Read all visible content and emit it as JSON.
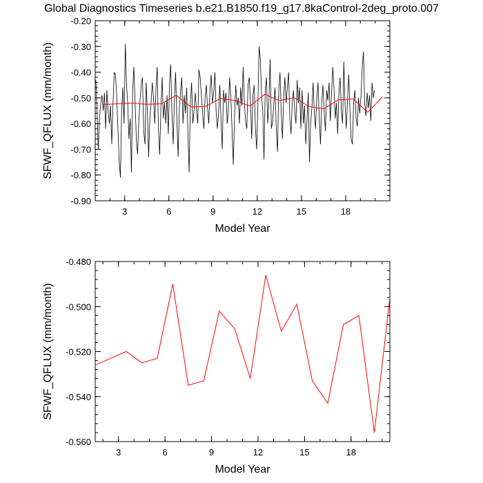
{
  "title": "Global Diagnostics Timeseries b.e21.B1850.f19_g17.8kaControl-2deg_proto.007",
  "colors": {
    "monthly": "#000000",
    "annual": "#ff0000"
  },
  "chart_data": [
    {
      "type": "line",
      "name": "monthly-and-annual-timeseries",
      "xlabel": "Model Year",
      "ylabel": "SFWF_QFLUX (mm/month)",
      "xlim": [
        1,
        21
      ],
      "ylim": [
        -0.9,
        -0.2
      ],
      "xticks": [
        3,
        6,
        9,
        15,
        18
      ],
      "xtick_labels": [
        "3",
        "6",
        "9",
        "15",
        "18"
      ],
      "xtick_positions_extra": [
        12
      ],
      "xtick_labels_extra": [
        "12"
      ],
      "yticks": [
        -0.9,
        -0.8,
        -0.7,
        -0.6,
        -0.5,
        -0.4,
        -0.3,
        -0.2
      ],
      "ytick_labels": [
        "-0.90",
        "-0.80",
        "-0.70",
        "-0.60",
        "-0.50",
        "-0.40",
        "-0.30",
        "-0.20"
      ],
      "series": [
        {
          "name": "monthly",
          "color": "#000000",
          "x_start": 1.0417,
          "x_step": 0.08333,
          "values": [
            -0.43,
            -0.55,
            -0.7,
            -0.58,
            -0.52,
            -0.49,
            -0.55,
            -0.48,
            -0.62,
            -0.47,
            -0.55,
            -0.6,
            -0.53,
            -0.68,
            -0.52,
            -0.4,
            -0.41,
            -0.49,
            -0.62,
            -0.74,
            -0.81,
            -0.55,
            -0.46,
            -0.6,
            -0.29,
            -0.45,
            -0.52,
            -0.66,
            -0.58,
            -0.79,
            -0.47,
            -0.38,
            -0.52,
            -0.66,
            -0.72,
            -0.59,
            -0.51,
            -0.45,
            -0.42,
            -0.63,
            -0.68,
            -0.44,
            -0.55,
            -0.73,
            -0.58,
            -0.52,
            -0.44,
            -0.5,
            -0.6,
            -0.46,
            -0.38,
            -0.62,
            -0.72,
            -0.54,
            -0.42,
            -0.58,
            -0.52,
            -0.6,
            -0.49,
            -0.64,
            -0.45,
            -0.37,
            -0.56,
            -0.68,
            -0.5,
            -0.4,
            -0.58,
            -0.73,
            -0.54,
            -0.48,
            -0.42,
            -0.6,
            -0.49,
            -0.56,
            -0.46,
            -0.63,
            -0.79,
            -0.52,
            -0.44,
            -0.6,
            -0.55,
            -0.48,
            -0.55,
            -0.6,
            -0.39,
            -0.42,
            -0.49,
            -0.56,
            -0.62,
            -0.5,
            -0.45,
            -0.54,
            -0.6,
            -0.47,
            -0.41,
            -0.52,
            -0.48,
            -0.4,
            -0.55,
            -0.62,
            -0.56,
            -0.45,
            -0.59,
            -0.7,
            -0.47,
            -0.52,
            -0.48,
            -0.6,
            -0.55,
            -0.42,
            -0.5,
            -0.63,
            -0.76,
            -0.57,
            -0.45,
            -0.53,
            -0.5,
            -0.6,
            -0.46,
            -0.53,
            -0.38,
            -0.52,
            -0.59,
            -0.62,
            -0.45,
            -0.42,
            -0.53,
            -0.66,
            -0.49,
            -0.45,
            -0.62,
            -0.7,
            -0.53,
            -0.3,
            -0.35,
            -0.49,
            -0.55,
            -0.74,
            -0.47,
            -0.42,
            -0.6,
            -0.52,
            -0.35,
            -0.62,
            -0.59,
            -0.52,
            -0.46,
            -0.62,
            -0.71,
            -0.47,
            -0.4,
            -0.55,
            -0.66,
            -0.5,
            -0.42,
            -0.52,
            -0.46,
            -0.4,
            -0.58,
            -0.64,
            -0.52,
            -0.47,
            -0.55,
            -0.6,
            -0.43,
            -0.52,
            -0.46,
            -0.62,
            -0.47,
            -0.6,
            -0.53,
            -0.68,
            -0.59,
            -0.48,
            -0.75,
            -0.6,
            -0.54,
            -0.44,
            -0.56,
            -0.62,
            -0.5,
            -0.44,
            -0.58,
            -0.68,
            -0.52,
            -0.45,
            -0.55,
            -0.63,
            -0.47,
            -0.51,
            -0.44,
            -0.59,
            -0.48,
            -0.38,
            -0.46,
            -0.58,
            -0.52,
            -0.64,
            -0.48,
            -0.42,
            -0.55,
            -0.6,
            -0.36,
            -0.52,
            -0.62,
            -0.51,
            -0.41,
            -0.55,
            -0.66,
            -0.68,
            -0.52,
            -0.47,
            -0.58,
            -0.61,
            -0.5,
            -0.56,
            -0.49,
            -0.38,
            -0.32,
            -0.52,
            -0.57,
            -0.48,
            -0.54,
            -0.49,
            -0.59,
            -0.44,
            -0.5,
            -0.47
          ]
        },
        {
          "name": "annual",
          "color": "#ff0000",
          "x": [
            1.5,
            2.5,
            3.5,
            4.5,
            5.5,
            6.5,
            7.5,
            8.5,
            9.5,
            10.5,
            11.5,
            12.5,
            13.5,
            14.5,
            15.5,
            16.5,
            17.5,
            18.5,
            19.5,
            20.5
          ],
          "values": [
            -0.526,
            -0.523,
            -0.52,
            -0.525,
            -0.523,
            -0.49,
            -0.535,
            -0.533,
            -0.502,
            -0.51,
            -0.532,
            -0.486,
            -0.511,
            -0.499,
            -0.533,
            -0.543,
            -0.508,
            -0.504,
            -0.556,
            -0.496
          ]
        }
      ]
    },
    {
      "type": "line",
      "name": "annual-mean-timeseries",
      "xlabel": "Model Year",
      "ylabel": "SFWF_QFLUX (mm/month)",
      "xlim": [
        1.5,
        20.5
      ],
      "ylim": [
        -0.56,
        -0.48
      ],
      "xticks": [
        3,
        6,
        9,
        12,
        15,
        18
      ],
      "xtick_labels": [
        "3",
        "6",
        "9",
        "12",
        "15",
        "18"
      ],
      "yticks": [
        -0.56,
        -0.54,
        -0.52,
        -0.5,
        -0.48
      ],
      "ytick_labels": [
        "-0.560",
        "-0.540",
        "-0.520",
        "-0.500",
        "-0.480"
      ],
      "series": [
        {
          "name": "annual",
          "color": "#ff0000",
          "x": [
            1.5,
            2.5,
            3.5,
            4.5,
            5.5,
            6.5,
            7.5,
            8.5,
            9.5,
            10.5,
            11.5,
            12.5,
            13.5,
            14.5,
            15.5,
            16.5,
            17.5,
            18.5,
            19.5,
            20.5
          ],
          "values": [
            -0.526,
            -0.523,
            -0.52,
            -0.525,
            -0.523,
            -0.49,
            -0.535,
            -0.533,
            -0.502,
            -0.51,
            -0.532,
            -0.486,
            -0.511,
            -0.499,
            -0.533,
            -0.543,
            -0.508,
            -0.504,
            -0.556,
            -0.496
          ]
        }
      ]
    }
  ]
}
